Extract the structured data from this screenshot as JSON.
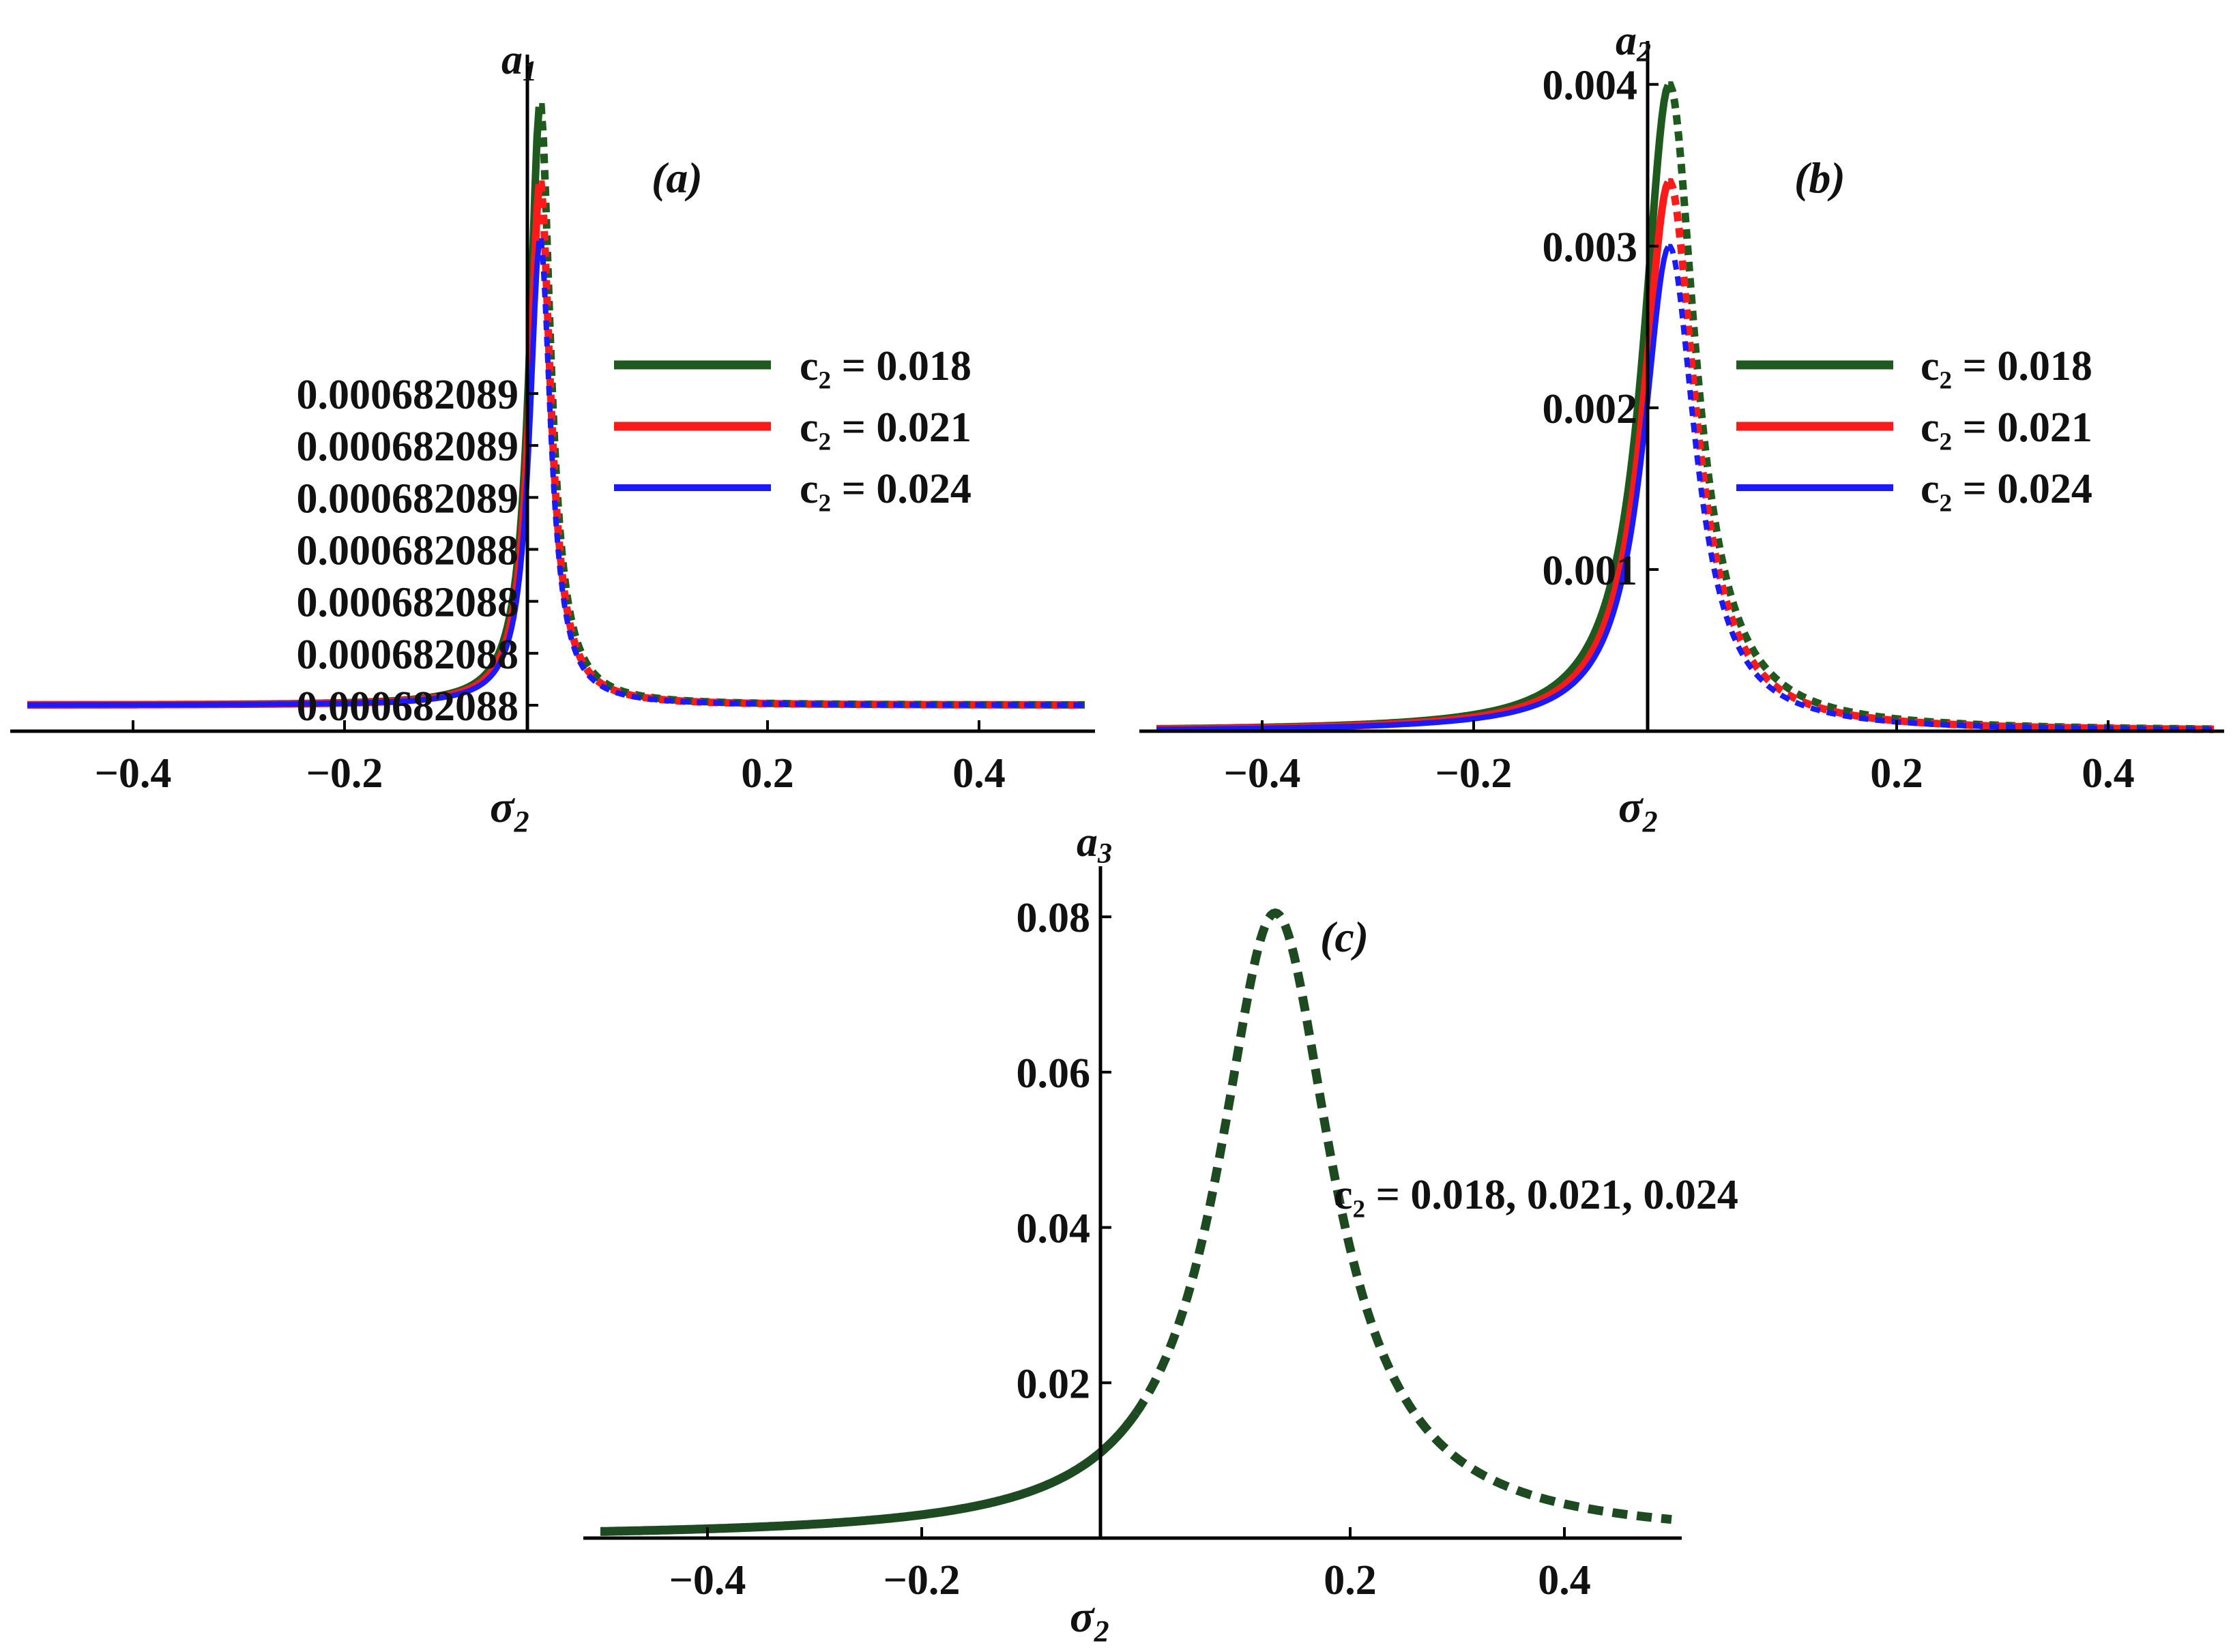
{
  "chart_data": [
    {
      "type": "line",
      "panel_label": "(a)",
      "xlabel": "σ₂",
      "ylabel": "a₁",
      "xlim": [
        -0.5,
        0.5
      ],
      "ylim": [
        0.00068208795,
        0.0006820892
      ],
      "x_ticks": [
        -0.4,
        -0.2,
        0.2,
        0.4
      ],
      "x_tick_labels": [
        "−0.4",
        "−0.2",
        "0.2",
        "0.4"
      ],
      "y_ticks": [
        0.000682088,
        0.0006820881,
        0.0006820882,
        0.0006820883,
        0.0006820884,
        0.0006820885,
        0.0006820886
      ],
      "y_tick_labels": [
        "0.000682088",
        "0.000682088",
        "0.000682088",
        "0.000682088",
        "0.000682089",
        "0.000682089",
        "0.000682089"
      ],
      "legend": [
        "c₂ = 0.018",
        "c₂ = 0.021",
        "c₂ = 0.024"
      ],
      "series": [
        {
          "name": "c₂ = 0.018",
          "color": "#1e5a1e",
          "baseline": 0.000682088,
          "peak_x": -0.015,
          "peak": 0.00068208916,
          "gamma": 0.012
        },
        {
          "name": "c₂ = 0.021",
          "color": "#ff1a1a",
          "baseline": 0.000682088,
          "peak_x": -0.015,
          "peak": 0.00068208901,
          "gamma": 0.012
        },
        {
          "name": "c₂ = 0.024",
          "color": "#1a1aff",
          "baseline": 0.000682088,
          "peak_x": -0.015,
          "peak": 0.0006820889,
          "gamma": 0.012
        }
      ]
    },
    {
      "type": "line",
      "panel_label": "(b)",
      "xlabel": "σ₂",
      "ylabel": "a₂",
      "xlim": [
        -0.5,
        0.5
      ],
      "ylim": [
        0,
        0.0041
      ],
      "x_ticks": [
        -0.4,
        -0.2,
        0.2,
        0.4
      ],
      "x_tick_labels": [
        "−0.4",
        "−0.2",
        "0.2",
        "0.4"
      ],
      "y_ticks": [
        0.001,
        0.002,
        0.003,
        0.004
      ],
      "y_tick_labels": [
        "0.001",
        "0.002",
        "0.003",
        "0.004"
      ],
      "legend": [
        "c₂ = 0.018",
        "c₂ = 0.021",
        "c₂ = 0.024"
      ],
      "series": [
        {
          "name": "c₂ = 0.018",
          "color": "#1e5a1e",
          "peak_x": -0.015,
          "peak": 0.004,
          "gamma": 0.03
        },
        {
          "name": "c₂ = 0.021",
          "color": "#ff1a1a",
          "peak_x": -0.015,
          "peak": 0.0034,
          "gamma": 0.03
        },
        {
          "name": "c₂ = 0.024",
          "color": "#1a1aff",
          "peak_x": -0.015,
          "peak": 0.003,
          "gamma": 0.03
        }
      ]
    },
    {
      "type": "line",
      "panel_label": "(c)",
      "xlabel": "σ₂",
      "ylabel": "a₃",
      "xlim": [
        -0.5,
        0.5
      ],
      "ylim": [
        0,
        0.083
      ],
      "x_ticks": [
        -0.4,
        -0.2,
        0.2,
        0.4
      ],
      "x_tick_labels": [
        "−0.4",
        "−0.2",
        "0.2",
        "0.4"
      ],
      "y_ticks": [
        0.02,
        0.04,
        0.06,
        0.08
      ],
      "y_tick_labels": [
        "0.02",
        "0.04",
        "0.06",
        "0.08"
      ],
      "annotation": "c₂ = 0.018, 0.021, 0.024",
      "series": [
        {
          "name": "c₂ = 0.018, 0.021, 0.024",
          "color": "#1e4a22",
          "peak_x": 0.13,
          "peak": 0.0805,
          "gamma": 0.065
        }
      ]
    }
  ]
}
